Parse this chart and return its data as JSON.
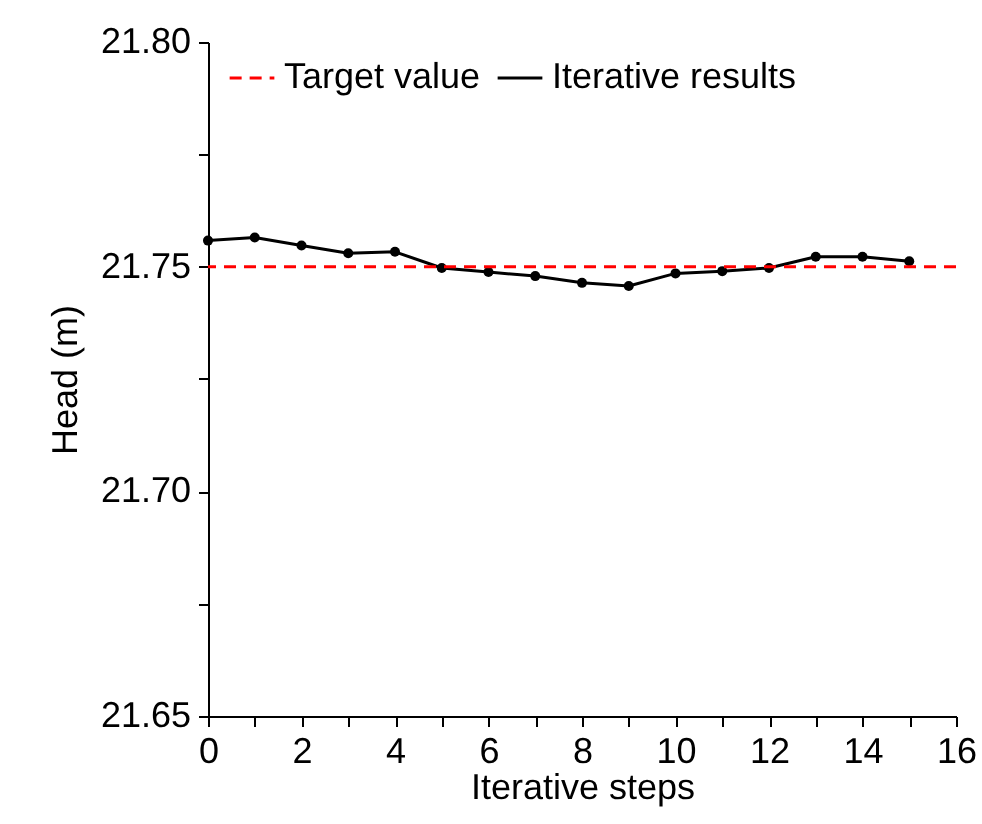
{
  "chart_data": {
    "type": "line",
    "xlabel": "Iterative steps",
    "ylabel": "Head (m)",
    "x": [
      0,
      1,
      2,
      3,
      4,
      5,
      6,
      7,
      8,
      9,
      10,
      11,
      12,
      13,
      14,
      15
    ],
    "series": [
      {
        "name": "Iterative results",
        "color": "#000000",
        "values": [
          21.7558,
          21.7565,
          21.7547,
          21.753,
          21.7533,
          21.7497,
          21.7488,
          21.7479,
          21.7464,
          21.7457,
          21.7485,
          21.749,
          21.7497,
          21.7522,
          21.7522,
          21.7512
        ]
      }
    ],
    "ref_lines": [
      {
        "axis": "y",
        "value": 21.75,
        "label": "Target value",
        "color": "#ff0000",
        "line_style": "dashed"
      }
    ],
    "xlim": [
      0,
      16
    ],
    "xticks": [
      0,
      {
        "value": 1,
        "label": null
      },
      2,
      {
        "value": 3,
        "label": null
      },
      4,
      {
        "value": 5,
        "label": null
      },
      6,
      {
        "value": 7,
        "label": null
      },
      8,
      {
        "value": 9,
        "label": null
      },
      10,
      {
        "value": 11,
        "label": null
      },
      12,
      {
        "value": 13,
        "label": null
      },
      14,
      {
        "value": 15,
        "label": null
      },
      16
    ],
    "ylim": [
      21.65,
      21.8
    ],
    "yticks": [
      {
        "value": 21.65,
        "label": "21.65"
      },
      {
        "value": 21.675,
        "label": null
      },
      {
        "value": 21.7,
        "label": "21.70"
      },
      {
        "value": 21.725,
        "label": null
      },
      {
        "value": 21.75,
        "label": "21.75"
      },
      {
        "value": 21.775,
        "label": null
      },
      {
        "value": 21.8,
        "label": "21.80"
      }
    ],
    "grid": false,
    "legend": "top",
    "marker": "circle",
    "line_style": "solid"
  }
}
